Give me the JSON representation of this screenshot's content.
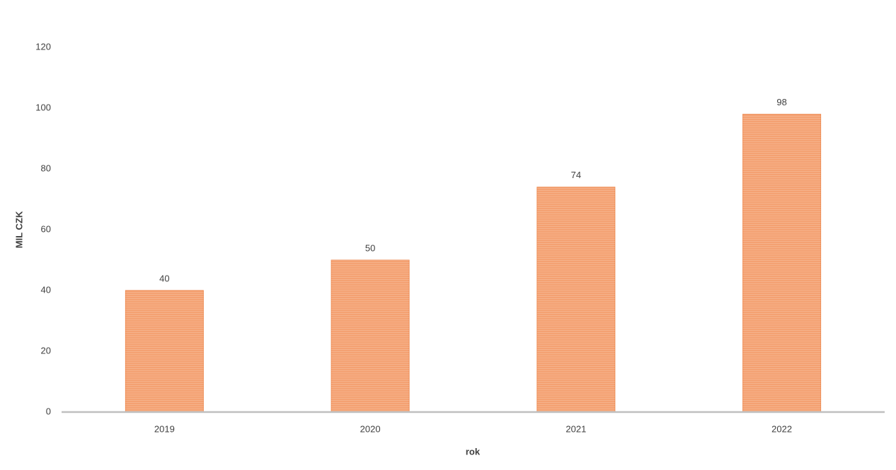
{
  "chart_data": {
    "type": "bar",
    "y_label": "MIL CZK",
    "x_label": "rok",
    "categories": [
      "2019",
      "2020",
      "2021",
      "2022"
    ],
    "values": [
      40,
      50,
      74,
      98
    ],
    "color": "#f4a172",
    "ylim": [
      0,
      120
    ],
    "yticks": [
      0,
      20,
      40,
      60,
      80,
      100,
      120
    ],
    "grid": false
  }
}
